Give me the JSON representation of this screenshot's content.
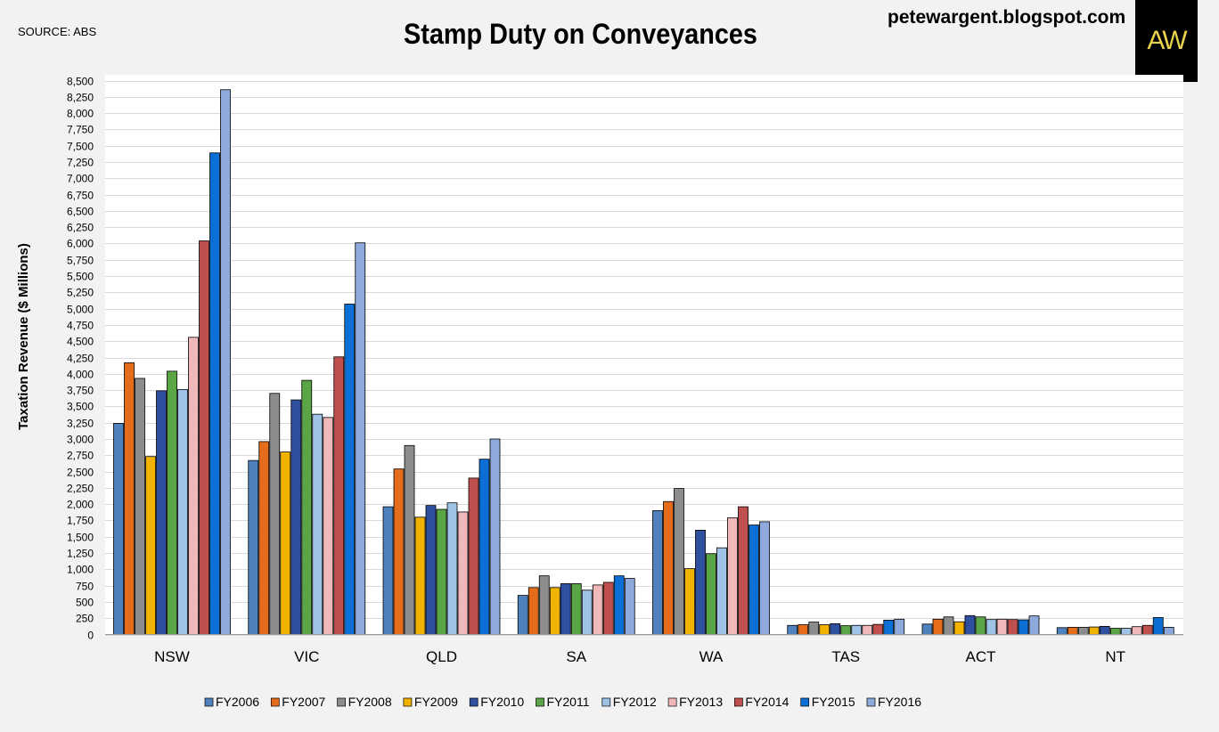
{
  "header": {
    "source": "SOURCE: ABS",
    "site": "petewargent.blogspot.com",
    "logo_text": "AW"
  },
  "chart_data": {
    "type": "bar",
    "title": "Stamp Duty on Conveyances",
    "ylabel": "Taxation Revenue ($ Millions)",
    "xlabel": "",
    "ylim": [
      0,
      8500
    ],
    "ytick_step": 250,
    "grid": true,
    "legend_position": "bottom",
    "categories": [
      "NSW",
      "VIC",
      "QLD",
      "SA",
      "WA",
      "TAS",
      "ACT",
      "NT"
    ],
    "series": [
      {
        "name": "FY2006",
        "color": "#4f81bd",
        "values": [
          3240,
          2670,
          1960,
          600,
          1900,
          140,
          160,
          105
        ]
      },
      {
        "name": "FY2007",
        "color": "#e46c1a",
        "values": [
          4170,
          2960,
          2540,
          720,
          2040,
          150,
          235,
          110
        ]
      },
      {
        "name": "FY2008",
        "color": "#8c8c8c",
        "values": [
          3930,
          3700,
          2900,
          900,
          2240,
          190,
          270,
          110
        ]
      },
      {
        "name": "FY2009",
        "color": "#f2b300",
        "values": [
          2730,
          2800,
          1800,
          720,
          1010,
          150,
          195,
          115
        ]
      },
      {
        "name": "FY2010",
        "color": "#2f4f9f",
        "values": [
          3740,
          3600,
          1980,
          780,
          1600,
          165,
          290,
          125
        ]
      },
      {
        "name": "FY2011",
        "color": "#5aa545",
        "values": [
          4040,
          3900,
          1920,
          780,
          1240,
          135,
          270,
          95
        ]
      },
      {
        "name": "FY2012",
        "color": "#9ec3e6",
        "values": [
          3760,
          3380,
          2020,
          680,
          1330,
          140,
          230,
          95
        ]
      },
      {
        "name": "FY2013",
        "color": "#f0b8b8",
        "values": [
          4560,
          3330,
          1880,
          760,
          1790,
          140,
          235,
          120
        ]
      },
      {
        "name": "FY2014",
        "color": "#c0504d",
        "values": [
          6040,
          4260,
          2400,
          800,
          1960,
          155,
          230,
          140
        ]
      },
      {
        "name": "FY2015",
        "color": "#0b6fd6",
        "values": [
          7390,
          5070,
          2690,
          900,
          1680,
          220,
          225,
          260
        ]
      },
      {
        "name": "FY2016",
        "color": "#8ea9db",
        "values": [
          8360,
          6010,
          3000,
          860,
          1730,
          235,
          285,
          110
        ]
      }
    ]
  }
}
